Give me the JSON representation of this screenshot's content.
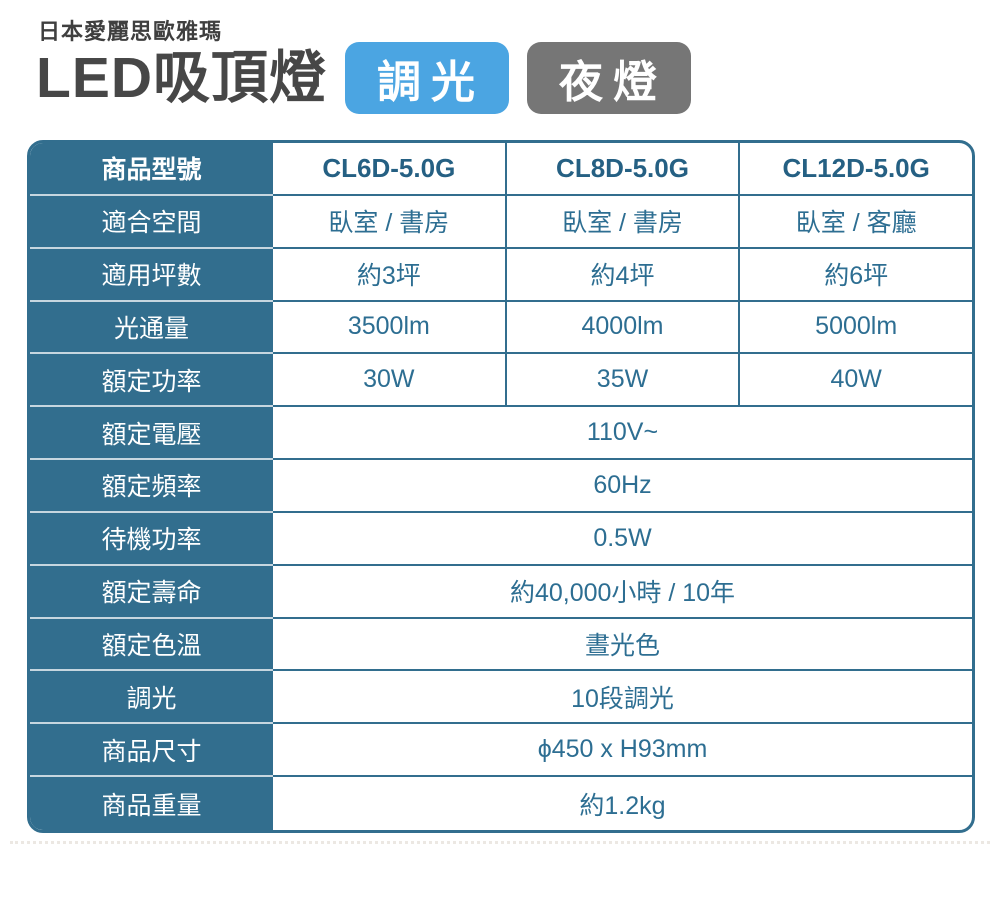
{
  "header": {
    "brand": "日本愛麗思歐雅瑪",
    "title": "LED吸頂燈",
    "badges": [
      {
        "label": "調光",
        "color": "#4ba5e2"
      },
      {
        "label": "夜燈",
        "color": "#767676"
      }
    ]
  },
  "colors": {
    "table_accent": "#326e8e",
    "value_text": "#2d6e92",
    "header_value_text": "#256083",
    "title_text": "#474747",
    "badge_blue": "#4ba5e2",
    "badge_gray": "#767676",
    "label_text": "#ffffff"
  },
  "table": {
    "header": {
      "label": "商品型號",
      "values": [
        "CL6D-5.0G",
        "CL8D-5.0G",
        "CL12D-5.0G"
      ]
    },
    "rows": [
      {
        "label": "適合空間",
        "values": [
          "臥室 / 書房",
          "臥室 / 書房",
          "臥室 / 客廳"
        ]
      },
      {
        "label": "適用坪數",
        "values": [
          "約3坪",
          "約4坪",
          "約6坪"
        ]
      },
      {
        "label": "光通量",
        "values": [
          "3500lm",
          "4000lm",
          "5000lm"
        ]
      },
      {
        "label": "額定功率",
        "values": [
          "30W",
          "35W",
          "40W"
        ]
      },
      {
        "label": "額定電壓",
        "span": "110V~"
      },
      {
        "label": "額定頻率",
        "span": "60Hz"
      },
      {
        "label": "待機功率",
        "span": "0.5W"
      },
      {
        "label": "額定壽命",
        "span": "約40,000小時 / 10年"
      },
      {
        "label": "額定色溫",
        "span": "晝光色"
      },
      {
        "label": "調光",
        "span": "10段調光"
      },
      {
        "label": "商品尺寸",
        "span": "ϕ450 x H93mm"
      },
      {
        "label": "商品重量",
        "span": "約1.2kg"
      }
    ]
  }
}
